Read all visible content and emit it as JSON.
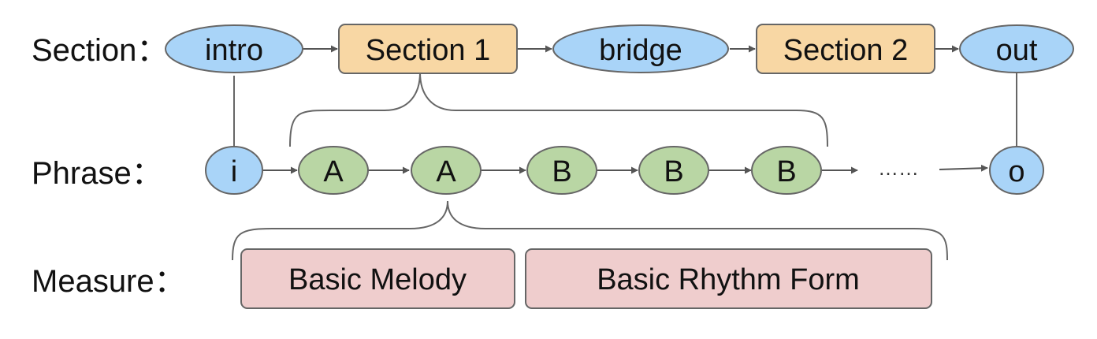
{
  "rows": {
    "section_label": "Section：",
    "phrase_label": "Phrase：",
    "measure_label": "Measure："
  },
  "section": {
    "intro": "intro",
    "section1": "Section 1",
    "bridge": "bridge",
    "section2": "Section 2",
    "out": "out"
  },
  "phrase": {
    "i": "i",
    "a1": "A",
    "a2": "A",
    "b1": "B",
    "b2": "B",
    "b3": "B",
    "ellipsis": "……",
    "o": "o"
  },
  "measure": {
    "melody": "Basic Melody",
    "rhythm": "Basic Rhythm Form"
  },
  "colors": {
    "blue_fill": "#a9d4f8",
    "orange_fill": "#f8d7a4",
    "green_fill": "#b9d6a4",
    "pink_fill": "#efcdcd",
    "stroke": "#666666"
  }
}
